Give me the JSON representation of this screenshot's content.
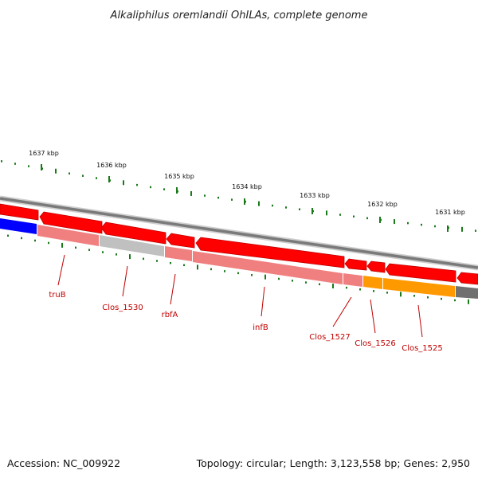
{
  "title": "Alkaliphilus oremlandii OhILAs, complete genome",
  "footer": {
    "accession": "Accession: NC_009922",
    "summary": "Topology: circular; Length: 3,123,558 bp; Genes: 2,950"
  },
  "ticks": [
    {
      "label": "1637 kbp"
    },
    {
      "label": "1636 kbp"
    },
    {
      "label": "1635 kbp"
    },
    {
      "label": "1634 kbp"
    },
    {
      "label": "1633 kbp"
    },
    {
      "label": "1632 kbp"
    },
    {
      "label": "1631 kbp"
    }
  ],
  "gene_labels": [
    {
      "name": "truB"
    },
    {
      "name": "Clos_1530"
    },
    {
      "name": "rbfA"
    },
    {
      "name": "infB"
    },
    {
      "name": "Clos_1527"
    },
    {
      "name": "Clos_1526"
    },
    {
      "name": "Clos_1525"
    }
  ],
  "colors": {
    "forward_track": "#ff0000",
    "feature_pink": "#f08080",
    "feature_gray": "#c0c0c0",
    "feature_blue": "#0000ff",
    "feature_orange": "#ff9900",
    "feature_darkgray": "#707070",
    "backbone": "#808080",
    "gc_ticks": "#1a7a1a",
    "label_text": "#c00000"
  }
}
